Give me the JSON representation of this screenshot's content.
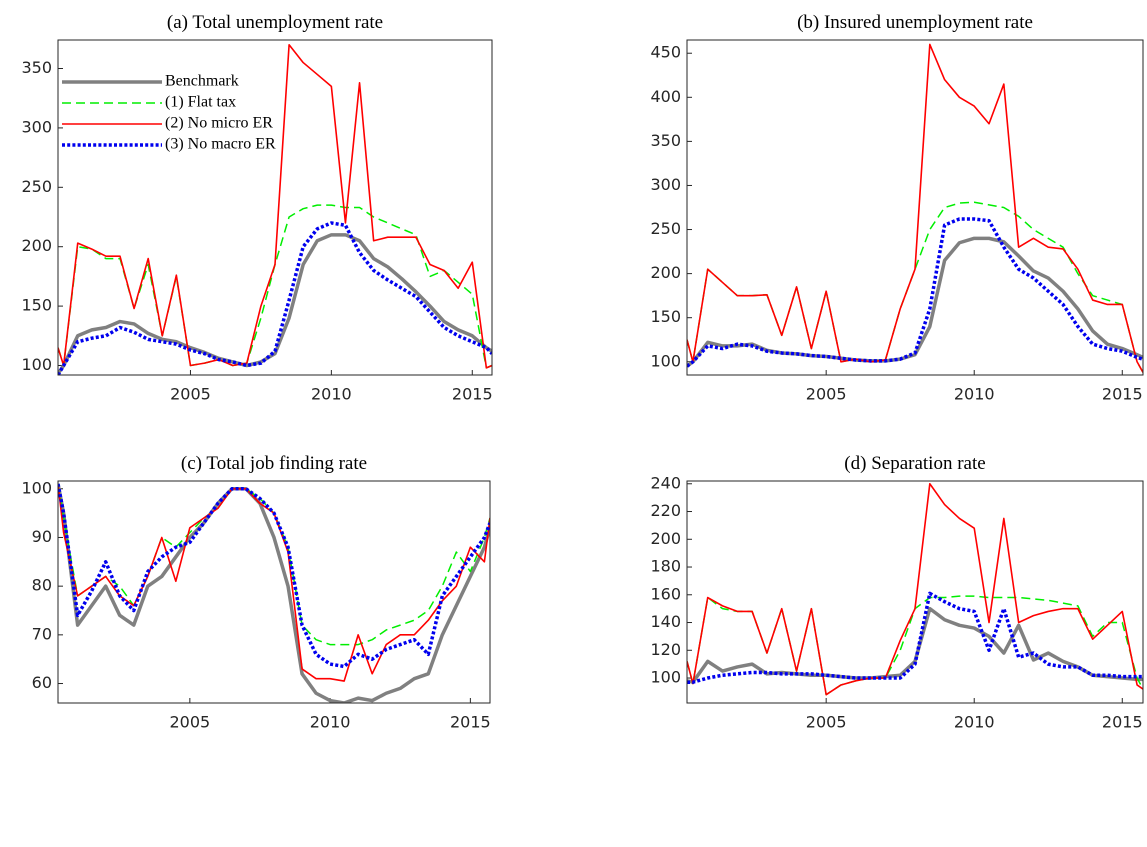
{
  "chart_data": [
    {
      "type": "line",
      "title": "(a) Total unemployment rate",
      "legend": "upper left",
      "x": [
        2000.3,
        2000.5,
        2001,
        2001.5,
        2002,
        2002.5,
        2003,
        2003.5,
        2004,
        2004.5,
        2005,
        2005.5,
        2006,
        2006.5,
        2007,
        2007.5,
        2008,
        2008.5,
        2009,
        2009.5,
        2010,
        2010.5,
        2011,
        2011.5,
        2012,
        2012.5,
        2013,
        2013.5,
        2014,
        2014.5,
        2015,
        2015.5,
        2015.7
      ],
      "xlim": [
        2000.3,
        2015.7
      ],
      "xticks": [
        2005,
        2010,
        2015
      ],
      "ylim": [
        92,
        374
      ],
      "yticks": [
        100,
        150,
        200,
        250,
        300,
        350
      ],
      "series": [
        {
          "name": "Benchmark",
          "color": "#808080",
          "linestyle": "solid",
          "linewidth": 3.5,
          "values": [
            93,
            100,
            125,
            130,
            132,
            137,
            135,
            127,
            122,
            120,
            115,
            111,
            106,
            103,
            100,
            103,
            110,
            140,
            185,
            205,
            210,
            210,
            205,
            190,
            183,
            173,
            162,
            150,
            137,
            130,
            125,
            115,
            112
          ]
        },
        {
          "name": "(1) Flat tax",
          "color": "#00ee00",
          "linestyle": "dashed",
          "linewidth": 1.5,
          "values": [
            115,
            100,
            200,
            198,
            190,
            190,
            148,
            185,
            125,
            175,
            100,
            102,
            105,
            100,
            102,
            140,
            185,
            225,
            232,
            235,
            235,
            233,
            233,
            225,
            220,
            215,
            210,
            175,
            180,
            170,
            160,
            98,
            100
          ]
        },
        {
          "name": "(2) No micro ER",
          "color": "#ff0000",
          "linestyle": "solid",
          "linewidth": 1.6,
          "values": [
            115,
            100,
            203,
            198,
            192,
            192,
            148,
            190,
            125,
            176,
            100,
            102,
            105,
            100,
            102,
            150,
            185,
            370,
            355,
            345,
            335,
            220,
            338,
            205,
            208,
            208,
            208,
            185,
            180,
            165,
            187,
            98,
            100
          ]
        },
        {
          "name": "(3) No macro ER",
          "color": "#0000ee",
          "linestyle": "dotted",
          "linewidth": 3.5,
          "values": [
            92,
            100,
            120,
            123,
            125,
            132,
            128,
            122,
            120,
            118,
            113,
            110,
            105,
            103,
            100,
            102,
            112,
            155,
            200,
            215,
            220,
            218,
            195,
            180,
            172,
            165,
            158,
            145,
            132,
            125,
            120,
            115,
            110
          ]
        }
      ]
    },
    {
      "type": "line",
      "title": "(b) Insured unemployment rate",
      "x": [
        2000.3,
        2000.5,
        2001,
        2001.5,
        2002,
        2002.5,
        2003,
        2003.5,
        2004,
        2004.5,
        2005,
        2005.5,
        2006,
        2006.5,
        2007,
        2007.5,
        2008,
        2008.5,
        2009,
        2009.5,
        2010,
        2010.5,
        2011,
        2011.5,
        2012,
        2012.5,
        2013,
        2013.5,
        2014,
        2014.5,
        2015,
        2015.5,
        2015.7
      ],
      "xlim": [
        2000.3,
        2015.7
      ],
      "xticks": [
        2005,
        2010,
        2015
      ],
      "ylim": [
        85,
        465
      ],
      "yticks": [
        100,
        150,
        200,
        250,
        300,
        350,
        400,
        450
      ],
      "series": [
        {
          "color": "#808080",
          "linestyle": "solid",
          "linewidth": 3.5,
          "values": [
            95,
            100,
            122,
            118,
            118,
            120,
            113,
            110,
            109,
            107,
            106,
            104,
            102,
            101,
            101,
            103,
            108,
            140,
            215,
            235,
            240,
            240,
            236,
            220,
            203,
            195,
            180,
            160,
            135,
            120,
            115,
            108,
            105
          ]
        },
        {
          "color": "#00ee00",
          "linestyle": "dashed",
          "linewidth": 1.5,
          "values": [
            125,
            100,
            205,
            190,
            175,
            175,
            176,
            130,
            185,
            115,
            180,
            100,
            103,
            100,
            102,
            160,
            205,
            250,
            275,
            280,
            281,
            278,
            275,
            265,
            250,
            240,
            230,
            200,
            175,
            170,
            165,
            100,
            88
          ]
        },
        {
          "color": "#ff0000",
          "linestyle": "solid",
          "linewidth": 1.6,
          "values": [
            125,
            100,
            205,
            190,
            175,
            175,
            176,
            130,
            185,
            115,
            180,
            100,
            103,
            100,
            102,
            160,
            205,
            460,
            420,
            400,
            390,
            370,
            415,
            230,
            240,
            230,
            228,
            205,
            170,
            165,
            165,
            100,
            88
          ]
        },
        {
          "color": "#0000ee",
          "linestyle": "dotted",
          "linewidth": 3.5,
          "values": [
            95,
            100,
            118,
            115,
            120,
            118,
            112,
            110,
            109,
            107,
            106,
            104,
            102,
            101,
            101,
            103,
            110,
            160,
            255,
            262,
            262,
            260,
            230,
            205,
            195,
            180,
            165,
            140,
            120,
            115,
            112,
            105,
            103
          ]
        }
      ]
    },
    {
      "type": "line",
      "title": "(c) Total job finding rate",
      "x": [
        2000.3,
        2000.5,
        2001,
        2001.5,
        2002,
        2002.5,
        2003,
        2003.5,
        2004,
        2004.5,
        2005,
        2005.5,
        2006,
        2006.5,
        2007,
        2007.5,
        2008,
        2008.5,
        2009,
        2009.5,
        2010,
        2010.5,
        2011,
        2011.5,
        2012,
        2012.5,
        2013,
        2013.5,
        2014,
        2014.5,
        2015,
        2015.5,
        2015.7
      ],
      "xlim": [
        2000.3,
        2015.7
      ],
      "xticks": [
        2005,
        2010,
        2015
      ],
      "ylim": [
        56,
        101.6
      ],
      "yticks": [
        60,
        70,
        80,
        90,
        100
      ],
      "series": [
        {
          "color": "#808080",
          "linestyle": "solid",
          "linewidth": 3.5,
          "values": [
            101,
            95,
            72,
            76,
            80,
            74,
            72,
            80,
            82,
            86,
            90,
            93,
            97,
            100,
            100,
            97,
            90,
            80,
            62,
            58,
            56.5,
            56,
            57,
            56.5,
            58,
            59,
            61,
            62,
            70,
            76,
            82,
            88,
            92
          ]
        },
        {
          "color": "#00ee00",
          "linestyle": "dashed",
          "linewidth": 1.5,
          "values": [
            101,
            94,
            78,
            80,
            82,
            80,
            76,
            82,
            90,
            88,
            91,
            94,
            96,
            100,
            100,
            98,
            95,
            88,
            72,
            69,
            68,
            68,
            68,
            69,
            71,
            72,
            73,
            75,
            80,
            87,
            83,
            90,
            94
          ]
        },
        {
          "color": "#ff0000",
          "linestyle": "solid",
          "linewidth": 1.6,
          "values": [
            101,
            91,
            78,
            80,
            82,
            78,
            76,
            82,
            90,
            81,
            92,
            94,
            96,
            100,
            100,
            97,
            95,
            87,
            63,
            61,
            61,
            60.5,
            70,
            62,
            68,
            70,
            70,
            73,
            77,
            80,
            88,
            85,
            94
          ]
        },
        {
          "color": "#0000ee",
          "linestyle": "dotted",
          "linewidth": 3.5,
          "values": [
            101,
            95,
            74,
            79,
            85,
            78,
            75,
            83,
            86,
            88,
            89,
            93,
            97,
            100,
            100,
            98,
            95,
            88,
            72,
            66,
            64,
            63.5,
            66,
            65,
            67,
            68,
            69,
            66,
            78,
            82,
            86,
            90,
            93
          ]
        }
      ]
    },
    {
      "type": "line",
      "title": "(d) Separation rate",
      "x": [
        2000.3,
        2000.5,
        2001,
        2001.5,
        2002,
        2002.5,
        2003,
        2003.5,
        2004,
        2004.5,
        2005,
        2005.5,
        2006,
        2006.5,
        2007,
        2007.5,
        2008,
        2008.5,
        2009,
        2009.5,
        2010,
        2010.5,
        2011,
        2011.5,
        2012,
        2012.5,
        2013,
        2013.5,
        2014,
        2014.5,
        2015,
        2015.5,
        2015.7
      ],
      "xlim": [
        2000.3,
        2015.7
      ],
      "xticks": [
        2005,
        2010,
        2015
      ],
      "ylim": [
        82,
        242
      ],
      "yticks": [
        100,
        120,
        140,
        160,
        180,
        200,
        220,
        240
      ],
      "series": [
        {
          "color": "#808080",
          "linestyle": "solid",
          "linewidth": 3.5,
          "values": [
            98,
            97,
            112,
            105,
            108,
            110,
            103,
            104,
            103,
            102,
            102,
            101,
            100,
            100,
            101,
            102,
            112,
            150,
            142,
            138,
            136,
            130,
            118,
            138,
            113,
            118,
            112,
            108,
            102,
            101,
            100,
            99,
            99
          ]
        },
        {
          "color": "#00ee00",
          "linestyle": "dashed",
          "linewidth": 1.5,
          "values": [
            112,
            96,
            158,
            150,
            148,
            148,
            118,
            150,
            105,
            150,
            88,
            95,
            98,
            100,
            100,
            120,
            150,
            158,
            158,
            159,
            159,
            158,
            158,
            158,
            157,
            156,
            154,
            152,
            130,
            140,
            140,
            100,
            92
          ]
        },
        {
          "color": "#ff0000",
          "linestyle": "solid",
          "linewidth": 1.6,
          "values": [
            112,
            96,
            158,
            152,
            148,
            148,
            118,
            150,
            105,
            150,
            88,
            95,
            98,
            100,
            100,
            127,
            150,
            240,
            225,
            215,
            208,
            140,
            215,
            140,
            145,
            148,
            150,
            150,
            128,
            138,
            148,
            95,
            92
          ]
        },
        {
          "color": "#0000ee",
          "linestyle": "dotted",
          "linewidth": 3.5,
          "values": [
            97,
            97,
            100,
            102,
            103,
            104,
            104,
            103,
            103,
            103,
            102,
            101,
            100,
            100,
            100,
            100,
            110,
            161,
            155,
            150,
            148,
            120,
            150,
            115,
            118,
            110,
            108,
            108,
            102,
            102,
            101,
            101,
            101
          ]
        }
      ]
    }
  ]
}
